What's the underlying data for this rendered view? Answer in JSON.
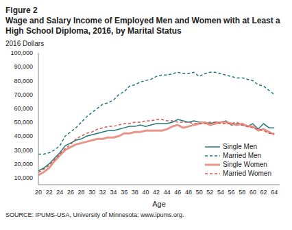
{
  "chart_data": {
    "type": "line",
    "figure_label": "Figure 2",
    "title": "Wage and Salary Income of Employed Men and Women with at Least a High School Diploma, 2016, by Marital Status",
    "subtitle": "2016 Dollars",
    "x_label": "Age",
    "source": "SOURCE: IPUMS-USA, University of Minnesota; www.ipums.org.",
    "x": [
      20,
      21,
      22,
      23,
      24,
      25,
      26,
      27,
      28,
      29,
      30,
      31,
      32,
      33,
      34,
      35,
      36,
      37,
      38,
      39,
      40,
      41,
      42,
      43,
      44,
      45,
      46,
      47,
      48,
      49,
      50,
      51,
      52,
      53,
      54,
      55,
      56,
      57,
      58,
      59,
      60,
      61,
      62,
      63,
      64
    ],
    "series": [
      {
        "name": "Single Men",
        "color": "#1f7a7a",
        "line_style": "solid",
        "values": [
          15000,
          17000,
          20000,
          24000,
          28000,
          33000,
          35000,
          37000,
          38000,
          40000,
          41000,
          42000,
          43000,
          44000,
          44000,
          45000,
          46000,
          47000,
          47000,
          48000,
          47000,
          48000,
          49000,
          49000,
          49000,
          50000,
          52000,
          51000,
          50000,
          51000,
          50000,
          50000,
          49000,
          50000,
          50000,
          51000,
          48000,
          49000,
          48000,
          47000,
          49000,
          45000,
          49000,
          46000,
          46000
        ]
      },
      {
        "name": "Married Men",
        "color": "#1f7a7a",
        "line_style": "dashed",
        "values": [
          27000,
          27000,
          28000,
          30000,
          33000,
          40000,
          43000,
          46000,
          50000,
          54000,
          57000,
          60000,
          63000,
          64000,
          66000,
          70000,
          72000,
          76000,
          77000,
          79000,
          80000,
          81000,
          83000,
          84000,
          84000,
          85000,
          86000,
          85000,
          85000,
          86000,
          83000,
          85000,
          86000,
          86000,
          85000,
          84000,
          83000,
          82000,
          82000,
          81000,
          80000,
          77000,
          76000,
          73000,
          70000
        ]
      },
      {
        "name": "Single Women",
        "color": "#e8958a",
        "line_style": "solid",
        "values": [
          12000,
          14000,
          17000,
          22000,
          26000,
          30000,
          32000,
          34000,
          35000,
          36000,
          37000,
          38000,
          38000,
          39000,
          39000,
          40000,
          42000,
          42000,
          43000,
          43000,
          44000,
          44000,
          44000,
          44000,
          45000,
          47000,
          48000,
          46000,
          47000,
          48000,
          49000,
          50000,
          48000,
          49000,
          50000,
          50000,
          49000,
          48000,
          49000,
          47000,
          47000,
          44000,
          45000,
          43000,
          41000
        ]
      },
      {
        "name": "Married Women",
        "color": "#d9544a",
        "line_style": "dashed",
        "values": [
          14000,
          16000,
          19000,
          23000,
          27000,
          31000,
          34000,
          38000,
          40000,
          42000,
          43000,
          45000,
          46000,
          47000,
          47000,
          48000,
          49000,
          49000,
          50000,
          50000,
          51000,
          51000,
          52000,
          52000,
          51000,
          51000,
          50000,
          50000,
          50000,
          49000,
          49000,
          49000,
          50000,
          50000,
          49000,
          49000,
          49000,
          50000,
          48000,
          47000,
          46000,
          45000,
          44000,
          42000,
          42000
        ]
      }
    ],
    "xlim": [
      20,
      65
    ],
    "xticks": [
      20,
      22,
      24,
      26,
      28,
      30,
      32,
      34,
      36,
      38,
      40,
      42,
      44,
      46,
      48,
      50,
      52,
      54,
      56,
      58,
      60,
      62,
      64
    ],
    "ylim": [
      5000,
      100000
    ],
    "yticks": [
      {
        "value": 10000,
        "label": "10,000"
      },
      {
        "value": 20000,
        "label": "20,000"
      },
      {
        "value": 30000,
        "label": "30,000"
      },
      {
        "value": 40000,
        "label": "40,000"
      },
      {
        "value": 50000,
        "label": "50,000"
      },
      {
        "value": 60000,
        "label": "60,000"
      },
      {
        "value": 70000,
        "label": "70,000"
      },
      {
        "value": 80000,
        "label": "80,000"
      },
      {
        "value": 90000,
        "label": "90,000"
      },
      {
        "value": 100000,
        "label": "100,000"
      }
    ],
    "grid": false,
    "legend": "lower right"
  }
}
